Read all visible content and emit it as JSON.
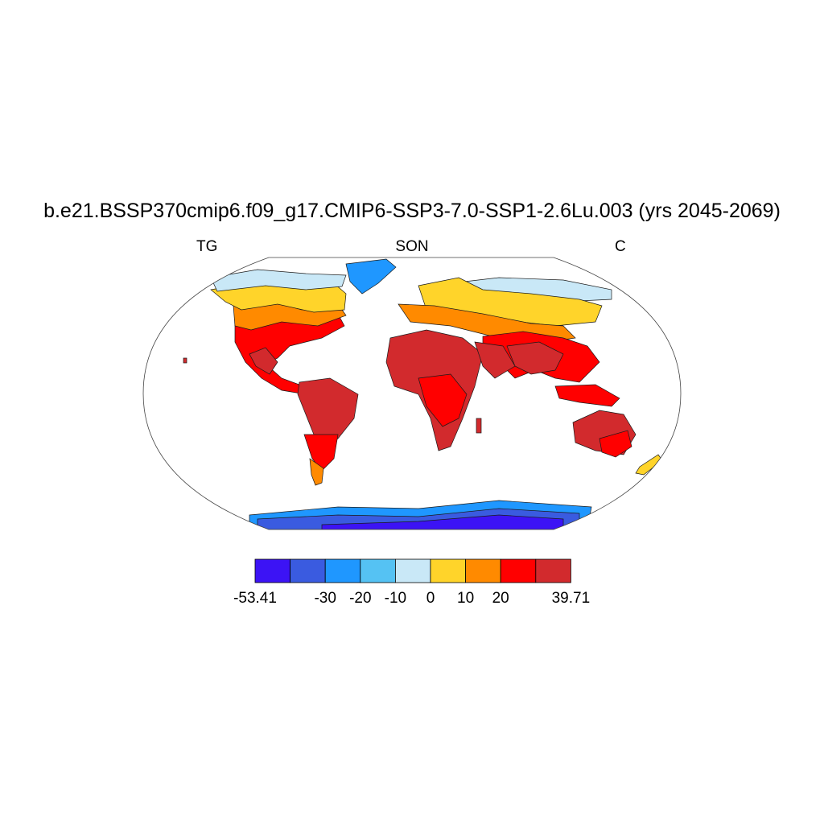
{
  "title": "b.e21.BSSP370cmip6.f09_g17.CMIP6-SSP3-7.0-SSP1-2.6Lu.003 (yrs 2045-2069)",
  "subtitle_left": "TG",
  "subtitle_center": "SON",
  "subtitle_right": "C",
  "colors": {
    "land_outline": "#1a1a1a",
    "frame": "#444444"
  },
  "colorbar": {
    "boxes": [
      "#3c13f5",
      "#3a5be0",
      "#1f97ff",
      "#55c2f3",
      "#c9e8f7",
      "#ffd42a",
      "#ff8a00",
      "#ff0000",
      "#d22a2d"
    ],
    "labels": [
      "-53.41",
      "-30",
      "-20",
      "-10",
      "0",
      "10",
      "20",
      "39.71"
    ],
    "label_box_edges": [
      0,
      2,
      3,
      4,
      5,
      6,
      7,
      9
    ]
  }
}
